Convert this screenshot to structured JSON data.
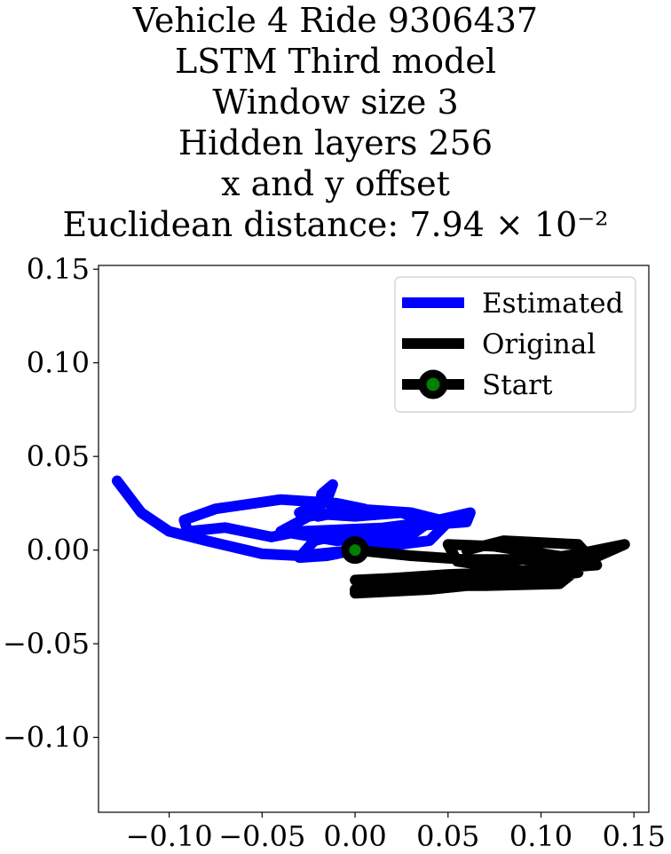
{
  "chart_data": {
    "type": "line",
    "title_lines": [
      "Vehicle 4 Ride 9306437",
      "LSTM Third model",
      "Window size 3",
      "Hidden layers 256",
      "x and y offset",
      "Euclidean distance: 7.94 × 10⁻²"
    ],
    "xlabel": "",
    "ylabel": "",
    "xlim": [
      -0.138,
      0.158
    ],
    "ylim": [
      -0.14,
      0.152
    ],
    "xticks": [
      -0.1,
      -0.05,
      0.0,
      0.05,
      0.1,
      0.15
    ],
    "xtick_labels": [
      "−0.10",
      "−0.05",
      "0.00",
      "0.05",
      "0.10",
      "0.15"
    ],
    "yticks": [
      0.15,
      0.1,
      0.05,
      0.0,
      -0.05,
      -0.1
    ],
    "ytick_labels": [
      "0.15",
      "0.10",
      "0.05",
      "0.00",
      "−0.05",
      "−0.10"
    ],
    "grid": false,
    "legend_position": "top-right",
    "series": [
      {
        "name": "Estimated",
        "color": "#0000ff",
        "x": [
          0.0,
          -0.015,
          -0.03,
          -0.022,
          0.0,
          0.04,
          0.062,
          0.06,
          0.02,
          -0.03,
          -0.045,
          -0.07,
          -0.09,
          -0.092,
          -0.075,
          -0.04,
          -0.01,
          0.005,
          -0.01,
          -0.02,
          -0.018,
          -0.012,
          -0.015,
          -0.03,
          0.0,
          0.025,
          0.04,
          0.03,
          -0.01,
          -0.04,
          -0.025,
          0.0,
          0.03,
          0.05,
          0.04,
          0.0,
          -0.03,
          -0.05,
          -0.08,
          -0.1,
          -0.115,
          -0.128
        ],
        "y": [
          0.0,
          -0.003,
          -0.004,
          0.005,
          0.01,
          0.015,
          0.02,
          0.015,
          0.012,
          0.01,
          0.007,
          0.012,
          0.01,
          0.016,
          0.022,
          0.027,
          0.025,
          0.022,
          0.02,
          0.018,
          0.03,
          0.035,
          0.027,
          0.02,
          0.018,
          0.02,
          0.015,
          0.008,
          0.005,
          0.01,
          0.018,
          0.022,
          0.02,
          0.015,
          0.005,
          0.0,
          -0.003,
          -0.002,
          0.005,
          0.01,
          0.02,
          0.037
        ]
      },
      {
        "name": "Original",
        "color": "#000000",
        "x": [
          0.0,
          0.03,
          0.06,
          0.1,
          0.12,
          0.145,
          0.12,
          0.08,
          0.05,
          0.02,
          0.0,
          0.002,
          0.04,
          0.08,
          0.12,
          0.11,
          0.07,
          0.04,
          0.02,
          0.0,
          0.0,
          0.04,
          0.08,
          0.12,
          0.115,
          0.075,
          0.05,
          0.055,
          0.09,
          0.13,
          0.12,
          0.08,
          0.06
        ],
        "y": [
          0.0,
          -0.003,
          -0.005,
          -0.005,
          -0.002,
          0.003,
          -0.008,
          -0.012,
          -0.013,
          -0.015,
          -0.016,
          -0.018,
          -0.017,
          -0.014,
          -0.01,
          -0.018,
          -0.019,
          -0.019,
          -0.02,
          -0.021,
          -0.023,
          -0.021,
          -0.017,
          -0.012,
          -0.004,
          0.002,
          0.003,
          -0.006,
          -0.011,
          -0.008,
          0.003,
          0.005,
          0.0
        ]
      }
    ],
    "start_point": {
      "name": "Start",
      "x": 0.0,
      "y": 0.0,
      "marker_color": "#008000",
      "edge_color": "#000000"
    }
  }
}
